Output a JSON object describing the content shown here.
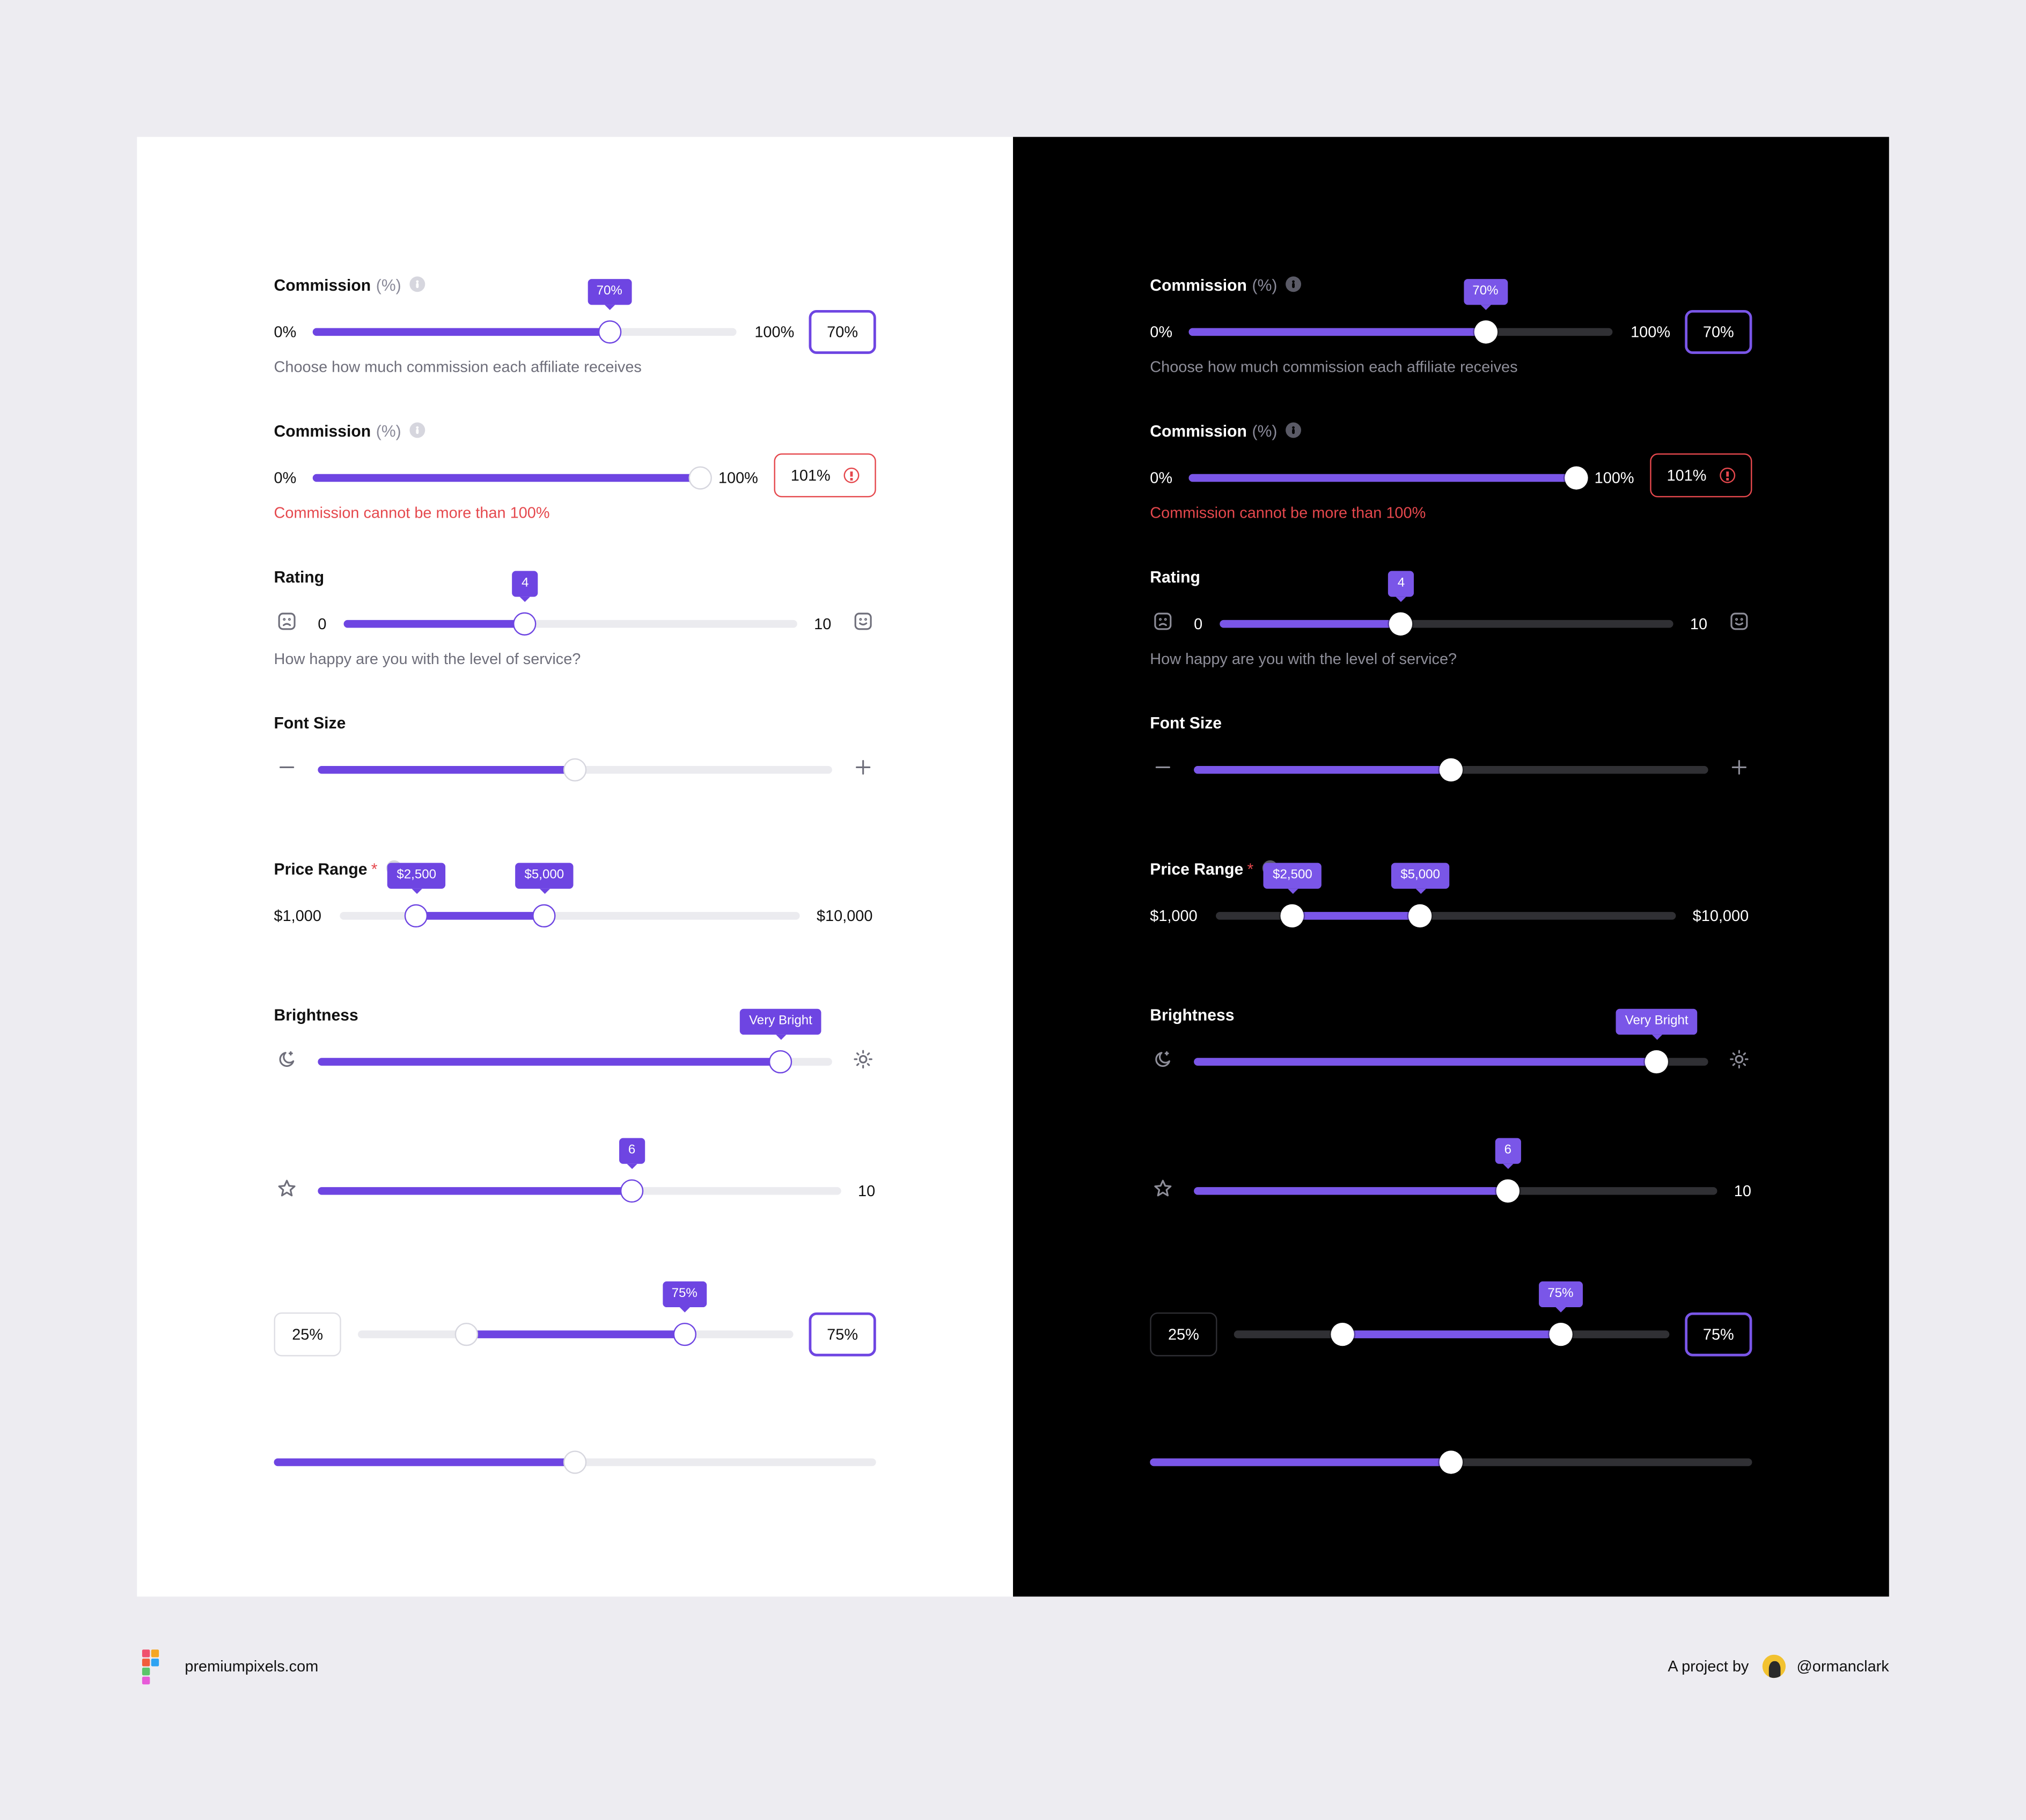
{
  "colors": {
    "accent": "#6E45E2",
    "accent_dark": "#7A56E8",
    "error": "#E5484D",
    "page_background": "#EDECF1",
    "light_panel": "#FFFFFF",
    "dark_panel": "#000000"
  },
  "commission": {
    "label": "Commission",
    "unit": "(%)",
    "min_label": "0%",
    "max_label": "100%",
    "value": 70,
    "tooltip": "70%",
    "input_value": "70%",
    "helper": "Choose how much commission each affiliate receives"
  },
  "commission_error": {
    "label": "Commission",
    "unit": "(%)",
    "min_label": "0%",
    "max_label": "100%",
    "value": 100,
    "input_value": "101%",
    "error": "Commission cannot be more than 100%"
  },
  "rating": {
    "label": "Rating",
    "min_label": "0",
    "max_label": "10",
    "value": 4,
    "tooltip": "4",
    "helper": "How happy are you with the level of service?",
    "min_icon": "sad-face-icon",
    "max_icon": "happy-face-icon"
  },
  "font_size": {
    "label": "Font Size",
    "value_fraction": 0.5,
    "min_icon": "minus-icon",
    "max_icon": "plus-icon"
  },
  "price_range": {
    "label": "Price Range",
    "required_marker": "*",
    "min_label": "$1,000",
    "max_label": "$10,000",
    "low_value": 2500,
    "high_value": 5000,
    "low_tooltip": "$2,500",
    "high_tooltip": "$5,000"
  },
  "brightness": {
    "label": "Brightness",
    "value_fraction": 0.9,
    "tooltip": "Very Bright",
    "min_icon": "moon-icon",
    "max_icon": "sun-icon"
  },
  "star_rating": {
    "max_label": "10",
    "value": 6,
    "tooltip": "6",
    "icon": "star-icon"
  },
  "percent_range": {
    "low_input": "25%",
    "high_input": "75%",
    "low_value": 25,
    "high_value": 75,
    "tooltip": "75%"
  },
  "plain_slider": {
    "value_fraction": 0.5
  },
  "footer": {
    "site": "premiumpixels.com",
    "project_by": "A project by",
    "handle": "@ormanclark"
  }
}
